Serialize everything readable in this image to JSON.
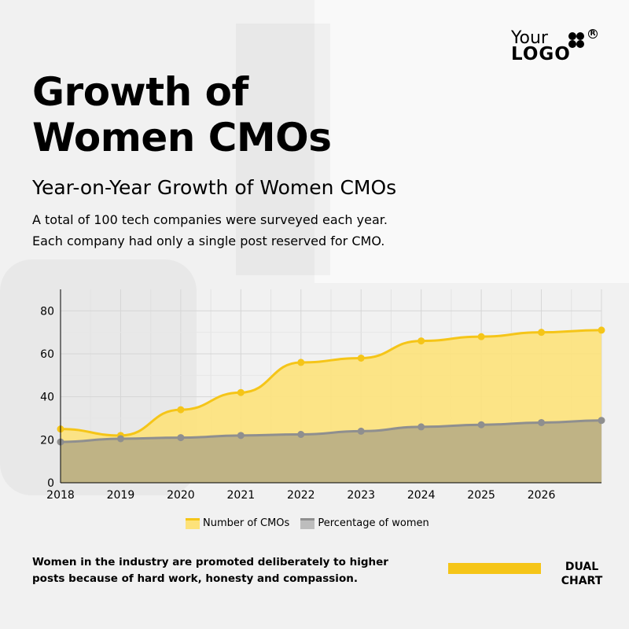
{
  "logo": {
    "line1": "Your",
    "line2": "LOGO",
    "registered": "R"
  },
  "header": {
    "title_line1": "Growth of",
    "title_line2": "Women CMOs",
    "subtitle": "Year-on-Year Growth of Women CMOs",
    "description_line1": "A total of 100 tech companies were surveyed each year.",
    "description_line2": "Each company had only a single post reserved for CMO."
  },
  "chart_data": {
    "type": "area",
    "title": "Year-on-Year Growth of Women CMOs",
    "xlabel": "",
    "ylabel": "",
    "x": [
      2018,
      2019,
      2020,
      2021,
      2022,
      2023,
      2024,
      2025,
      2026,
      2027
    ],
    "x_tick_labels": [
      "2018",
      "2019",
      "2020",
      "2021",
      "2022",
      "2023",
      "2024",
      "2025",
      "2026"
    ],
    "y_ticks": [
      0,
      20,
      40,
      60,
      80
    ],
    "ylim": [
      0,
      90
    ],
    "xlim": [
      2018,
      2027
    ],
    "grid": true,
    "legend": "bottom",
    "series": [
      {
        "name": "Number of CMOs",
        "values": [
          25,
          22,
          34,
          42,
          56,
          58,
          66,
          68,
          70,
          71
        ],
        "color": "#f5c518",
        "fill": "#fde27a"
      },
      {
        "name": "Percentage of women",
        "values": [
          19,
          20.5,
          21,
          22,
          22.5,
          24,
          26,
          27,
          28,
          29
        ],
        "color": "#8f8f8f",
        "fill": "#bfb385"
      }
    ]
  },
  "legend": {
    "items": [
      {
        "label": "Number of CMOs"
      },
      {
        "label": "Percentage of women"
      }
    ]
  },
  "footer": {
    "note": "Women in the industry are promoted deliberately to higher posts because of hard work, honesty and compassion.",
    "tag_line1": "DUAL",
    "tag_line2": "CHART"
  },
  "colors": {
    "accent": "#f5c518",
    "background": "#f1f1f1",
    "text": "#000000"
  }
}
